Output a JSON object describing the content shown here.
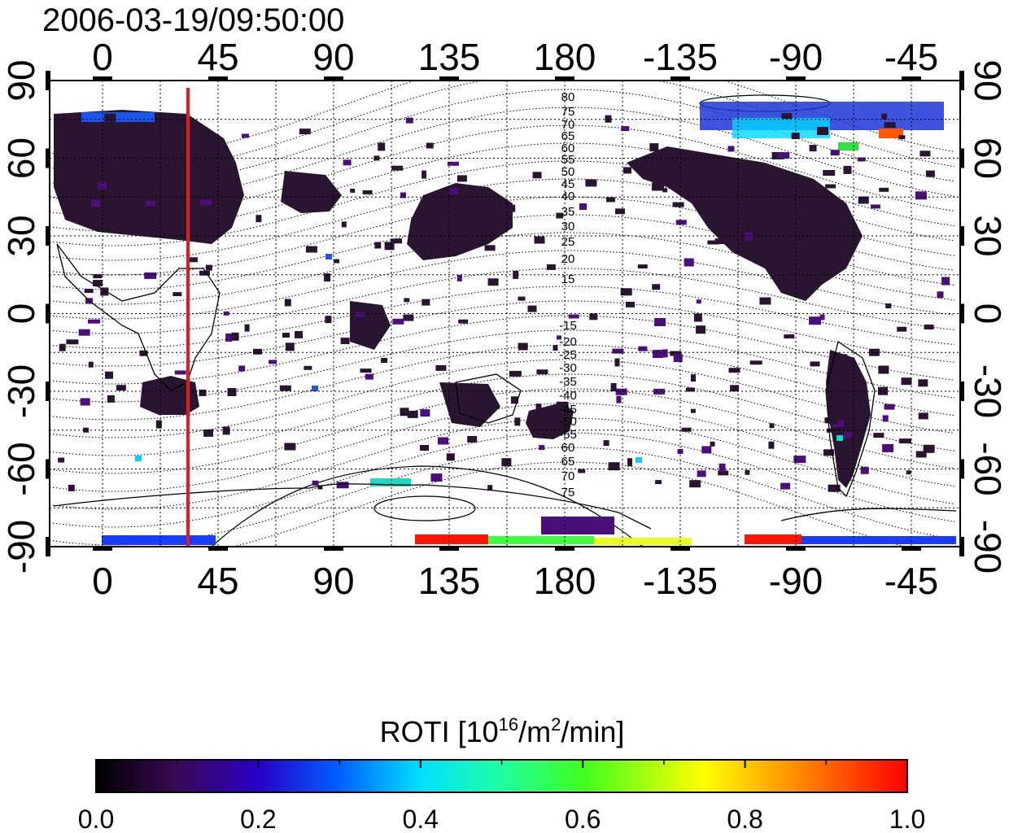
{
  "title": "2006-03-19/09:50:00",
  "map": {
    "lon_ticks_top": [
      "0",
      "45",
      "90",
      "135",
      "180",
      "-135",
      "-90",
      "-45"
    ],
    "lon_ticks_bottom": [
      "0",
      "45",
      "90",
      "135",
      "180",
      "-135",
      "-90",
      "-45"
    ],
    "lat_ticks_left": [
      "90",
      "60",
      "30",
      "0",
      "-30",
      "-60",
      "-90"
    ],
    "lat_ticks_right": [
      "90",
      "60",
      "30",
      "0",
      "-30",
      "-60",
      "-90"
    ],
    "contour_labels_north": [
      "80",
      "75",
      "70",
      "65",
      "60",
      "55",
      "50",
      "45",
      "40",
      "35",
      "30",
      "25",
      "20",
      "15"
    ],
    "contour_labels_south": [
      "-15",
      "-20",
      "-25",
      "-30",
      "-35",
      "-40",
      "-45",
      "-50",
      "-55",
      "60",
      "65",
      "70",
      "75"
    ],
    "meridian_line_longitude": 37
  },
  "colorbar": {
    "label_prefix": "ROTI  [10",
    "label_sup1": "16",
    "label_mid": "/m",
    "label_sup2": "2",
    "label_suffix": "/min]",
    "ticks": [
      "0.0",
      "0.2",
      "0.4",
      "0.6",
      "0.8",
      "1.0"
    ],
    "range": [
      0.0,
      1.0
    ]
  },
  "colors": {
    "background": "#ffffff",
    "axis": "#000000",
    "meridian_line": "#e41a1c",
    "land_data_dark": "#2a1530",
    "purple": "#4b0f7a"
  }
}
